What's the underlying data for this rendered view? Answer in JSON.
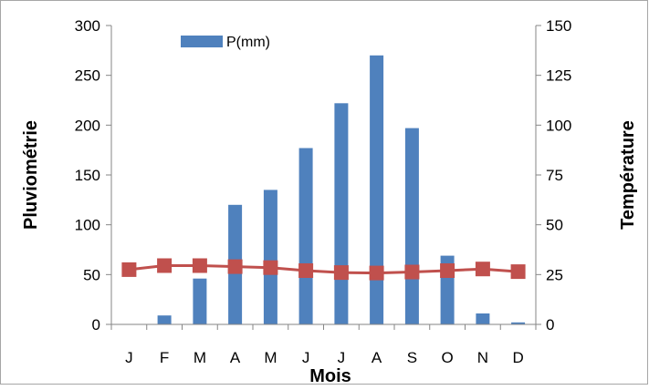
{
  "chart_data": {
    "type": "bar",
    "categories": [
      "J",
      "F",
      "M",
      "A",
      "M",
      "J",
      "J",
      "A",
      "S",
      "O",
      "N",
      "D"
    ],
    "series": [
      {
        "name": "P(mm)",
        "type": "bar",
        "axis": "left",
        "color": "#4f81bd",
        "values": [
          0,
          9,
          46,
          120,
          135,
          177,
          222,
          270,
          197,
          69,
          11,
          2
        ]
      },
      {
        "name": "",
        "type": "line",
        "axis": "right",
        "color": "#c0504d",
        "values": [
          27.5,
          29.5,
          29.5,
          29,
          28.5,
          27,
          26,
          25.8,
          26.3,
          27,
          27.8,
          26.5
        ]
      }
    ],
    "xlabel": "Mois",
    "ylabel": "Pluviométrie",
    "y2label": "Température",
    "ylim": [
      0,
      300
    ],
    "y2lim": [
      0,
      150
    ],
    "yticks": [
      "0",
      "50",
      "100",
      "150",
      "200",
      "250",
      "300"
    ],
    "y2ticks": [
      "0",
      "25",
      "50",
      "75",
      "100",
      "125",
      "150"
    ],
    "legend": {
      "position": "top-left",
      "entries": [
        "P(mm)"
      ]
    },
    "grid": false
  }
}
